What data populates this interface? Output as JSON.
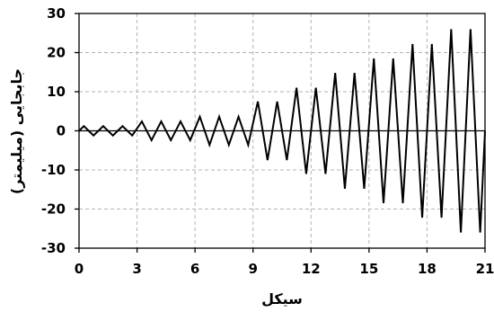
{
  "chart_data": {
    "type": "line",
    "title": "",
    "xlabel": "سیکل",
    "ylabel": "جابجایی (میلیمتر)",
    "xlim": [
      0,
      21
    ],
    "ylim": [
      -30,
      30
    ],
    "x_ticks": [
      0,
      3,
      6,
      9,
      12,
      15,
      18,
      21
    ],
    "y_ticks": [
      -30,
      -20,
      -10,
      0,
      10,
      20,
      30
    ],
    "x_tick_labels": [
      "0",
      "3",
      "6",
      "9",
      "12",
      "15",
      "18",
      "21"
    ],
    "y_tick_labels": [
      "-30",
      "-20",
      "-10",
      "0",
      "10",
      "20",
      "30"
    ],
    "grid": true,
    "line_color": "#000000",
    "series": [
      {
        "x": [
          0,
          0.25,
          0.75,
          1.25,
          1.75,
          2.25,
          2.75,
          3.25,
          3.75,
          4.25,
          4.75,
          5.25,
          5.75,
          6.25,
          6.75,
          7.25,
          7.75,
          8.25,
          8.75,
          9.25,
          9.75,
          10.25,
          10.75,
          11.25,
          11.75,
          12.25,
          12.75,
          13.25,
          13.75,
          14.25,
          14.75,
          15.25,
          15.75,
          16.25,
          16.75,
          17.25,
          17.75,
          18.25,
          18.75,
          19.25,
          19.75,
          20.25,
          20.75,
          21
        ],
        "y": [
          0,
          1.2,
          -1.2,
          1.2,
          -1.2,
          1.2,
          -1.2,
          2.4,
          -2.4,
          2.4,
          -2.4,
          2.4,
          -2.4,
          3.6,
          -3.6,
          3.6,
          -3.6,
          3.6,
          -3.6,
          7.5,
          -7.5,
          7.5,
          -7.5,
          11,
          -11,
          11,
          -11,
          14.8,
          -14.8,
          14.8,
          -14.8,
          18.5,
          -18.5,
          18.5,
          -18.5,
          22.2,
          -22.2,
          22.2,
          -22.2,
          26,
          -26,
          26,
          -26,
          0
        ]
      }
    ]
  }
}
